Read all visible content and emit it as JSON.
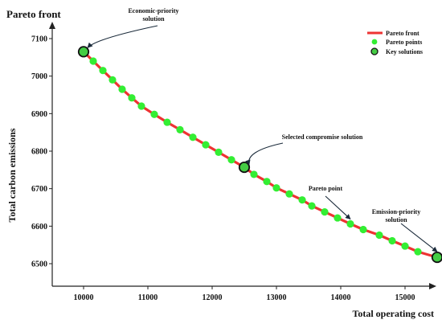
{
  "chart_data": {
    "type": "line",
    "title": "Pareto front",
    "xlabel": "Total operating cost",
    "ylabel": "Total carbon emissions",
    "xlim": [
      9600,
      15800
    ],
    "ylim": [
      6460,
      7150
    ],
    "xticks": [
      10000,
      11000,
      12000,
      13000,
      14000,
      15000
    ],
    "yticks": [
      6500,
      6600,
      6700,
      6800,
      6900,
      7000,
      7100
    ],
    "grid": false,
    "legend_position": "top-right",
    "legend": {
      "front": "Pareto front",
      "points": "Pareto points",
      "key": "Key solutions"
    },
    "colors": {
      "front": "#ee3333",
      "points": "#33ee33",
      "key_fill": "#44cc44",
      "annotation": "#1a2a3a"
    },
    "series": [
      {
        "name": "Pareto points",
        "x": [
          10000,
          10150,
          10300,
          10450,
          10600,
          10750,
          10900,
          11100,
          11300,
          11500,
          11700,
          11900,
          12100,
          12300,
          12500,
          12650,
          12850,
          13000,
          13200,
          13400,
          13550,
          13750,
          13950,
          14150,
          14350,
          14600,
          14800,
          15000,
          15200,
          15500
        ],
        "y": [
          7065,
          7040,
          7015,
          6990,
          6965,
          6942,
          6920,
          6898,
          6877,
          6857,
          6837,
          6817,
          6797,
          6777,
          6757,
          6738,
          6719,
          6702,
          6686,
          6670,
          6654,
          6638,
          6622,
          6606,
          6591,
          6576,
          6561,
          6547,
          6532,
          6517
        ]
      }
    ],
    "key_solutions": [
      {
        "x": 10000,
        "y": 7065
      },
      {
        "x": 12500,
        "y": 6757
      },
      {
        "x": 15500,
        "y": 6517
      }
    ],
    "annotations": [
      {
        "lines": [
          "Economic-priority",
          "solution"
        ],
        "target_x": 10000,
        "target_y": 7065,
        "arrow": "curve"
      },
      {
        "lines": [
          "Selected compromise solution"
        ],
        "target_x": 12500,
        "target_y": 6757,
        "arrow": "curve"
      },
      {
        "lines": [
          "Pareto point"
        ],
        "target_x": 14150,
        "target_y": 6606,
        "arrow": "straight"
      },
      {
        "lines": [
          "Emission-priority",
          "solution"
        ],
        "target_x": 15500,
        "target_y": 6517,
        "arrow": "straight"
      }
    ]
  }
}
